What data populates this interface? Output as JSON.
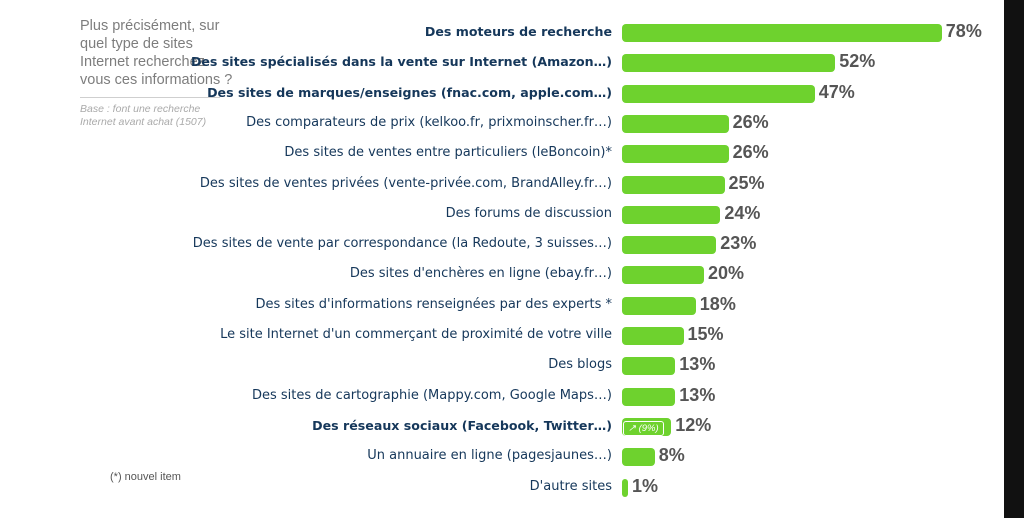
{
  "question": "Plus précisément, sur quel type de sites Internet recherchez-vous ces informations ?",
  "base_note": "Base : font une recherche Internet avant achat (1507)",
  "footnote": "(*) nouvel item",
  "colors": {
    "bar": "#6ed22e",
    "label": "#15375a",
    "value": "#555555"
  },
  "chart_data": {
    "type": "bar",
    "orientation": "horizontal",
    "unit": "%",
    "categories": [
      "Des moteurs de recherche",
      "Des sites spécialisés dans la vente sur Internet (Amazon…)",
      "Des sites de marques/enseignes (fnac.com, apple.com…)",
      "Des comparateurs de prix (kelkoo.fr, prixmoinscher.fr…)",
      "Des sites de ventes entre particuliers (leBoncoin)*",
      "Des sites de ventes privées (vente-privée.com, BrandAlley.fr…)",
      "Des forums de discussion",
      "Des sites de vente par correspondance (la Redoute, 3 suisses…)",
      "Des sites d'enchères en ligne (ebay.fr…)",
      "Des sites d'informations renseignées par des experts *",
      "Le site Internet d'un commerçant de proximité de votre ville",
      "Des blogs",
      "Des sites de cartographie (Mappy.com, Google Maps…)",
      "Des réseaux sociaux (Facebook, Twitter…)",
      "Un annuaire en ligne (pagesjaunes…)",
      "D'autre sites"
    ],
    "values": [
      78,
      52,
      47,
      26,
      26,
      25,
      24,
      23,
      20,
      18,
      15,
      13,
      13,
      12,
      8,
      1
    ],
    "value_labels": [
      "78%",
      "52%",
      "47%",
      "26%",
      "26%",
      "25%",
      "24%",
      "23%",
      "20%",
      "18%",
      "15%",
      "13%",
      "13%",
      "12%",
      "8%",
      "1%"
    ],
    "bold_categories": [
      0,
      1,
      2,
      13
    ],
    "annotations": [
      {
        "category_index": 13,
        "text": "↗ (9%)"
      }
    ]
  }
}
